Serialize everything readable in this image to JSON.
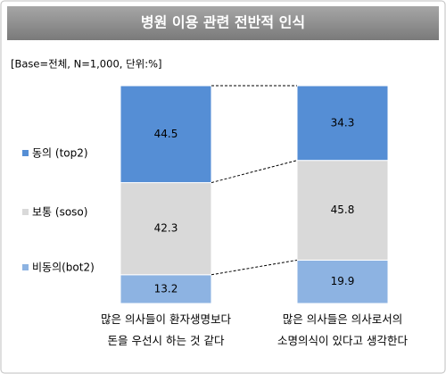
{
  "chart_data": {
    "type": "stacked_bar",
    "title": "병원 이용 관련 전반적 인식",
    "subtitle": "[Base=전체,  N=1,000, 단위:%]",
    "categories": [
      "많은 의사들이 환자생명보다\n돈을 우선시 하는 것 같다",
      "많은 의사들은 의사로서의\n소명의식이 있다고 생각한다"
    ],
    "series": [
      {
        "name": "비동의(bot2)",
        "color": "#8db3e2",
        "values": [
          13.2,
          19.9
        ]
      },
      {
        "name": "보통 (soso)",
        "color": "#d9d9d9",
        "values": [
          42.3,
          45.8
        ]
      },
      {
        "name": "동의 (top2)",
        "color": "#558ed5",
        "values": [
          44.5,
          34.3
        ]
      }
    ],
    "ylim": [
      0,
      100
    ]
  }
}
